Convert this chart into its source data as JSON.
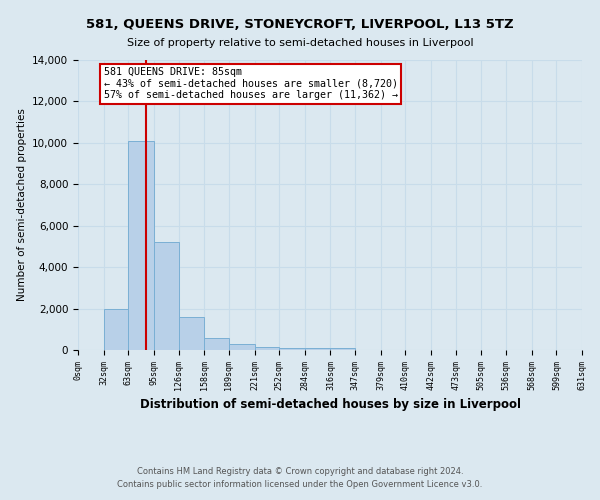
{
  "title": "581, QUEENS DRIVE, STONEYCROFT, LIVERPOOL, L13 5TZ",
  "subtitle": "Size of property relative to semi-detached houses in Liverpool",
  "xlabel": "Distribution of semi-detached houses by size in Liverpool",
  "ylabel": "Number of semi-detached properties",
  "footnote1": "Contains HM Land Registry data © Crown copyright and database right 2024.",
  "footnote2": "Contains public sector information licensed under the Open Government Licence v3.0.",
  "bin_edges": [
    0,
    32,
    63,
    95,
    126,
    158,
    189,
    221,
    252,
    284,
    316,
    347,
    379,
    410,
    442,
    473,
    505,
    536,
    568,
    599,
    631
  ],
  "bar_heights": [
    0,
    1970,
    10100,
    5200,
    1600,
    600,
    270,
    160,
    120,
    120,
    120,
    0,
    0,
    0,
    0,
    0,
    0,
    0,
    0,
    0
  ],
  "bar_color": "#b8d0e8",
  "bar_edgecolor": "#7aafd4",
  "vline_x": 85,
  "vline_color": "#cc0000",
  "annotation_text": "581 QUEENS DRIVE: 85sqm\n← 43% of semi-detached houses are smaller (8,720)\n57% of semi-detached houses are larger (11,362) →",
  "annotation_box_color": "#cc0000",
  "annotation_bg": "#ffffff",
  "ylim": [
    0,
    14000
  ],
  "yticks": [
    0,
    2000,
    4000,
    6000,
    8000,
    10000,
    12000,
    14000
  ],
  "grid_color": "#c8dcea",
  "bg_color": "#dbe8f0"
}
